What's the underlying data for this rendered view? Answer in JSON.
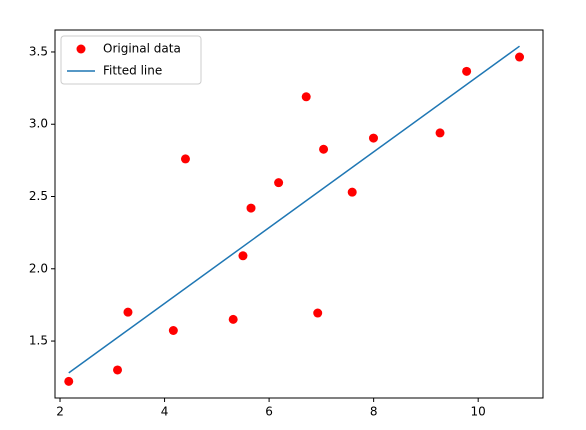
{
  "chart_data": {
    "type": "scatter",
    "series": [
      {
        "name": "Original data",
        "mode": "markers",
        "color": "#ff0000",
        "x": [
          3.3,
          4.4,
          5.5,
          6.71,
          6.93,
          4.168,
          9.779,
          6.182,
          7.59,
          2.167,
          7.042,
          10.791,
          5.313,
          7.997,
          5.654,
          9.27,
          3.1
        ],
        "values": [
          1.7,
          2.76,
          2.09,
          3.19,
          1.694,
          1.573,
          3.366,
          2.596,
          2.53,
          1.221,
          2.827,
          3.465,
          1.65,
          2.904,
          2.42,
          2.94,
          1.3
        ]
      },
      {
        "name": "Fitted line",
        "mode": "line",
        "color": "#1f77b4",
        "x": [
          2.167,
          10.791
        ],
        "values": [
          1.28,
          3.54
        ]
      }
    ],
    "xlim": [
      1.904,
      11.24
    ],
    "ylim": [
      1.106,
      3.652
    ],
    "xticks": [
      2,
      4,
      6,
      8,
      10
    ],
    "yticks": [
      {
        "value": 1.5,
        "label": "1.5"
      },
      {
        "value": 2,
        "label": "2.0"
      },
      {
        "value": 2.5,
        "label": "2.5"
      },
      {
        "value": 3,
        "label": "3.0"
      },
      {
        "value": 3.5,
        "label": "3.5"
      }
    ],
    "legend": "upper-left"
  }
}
